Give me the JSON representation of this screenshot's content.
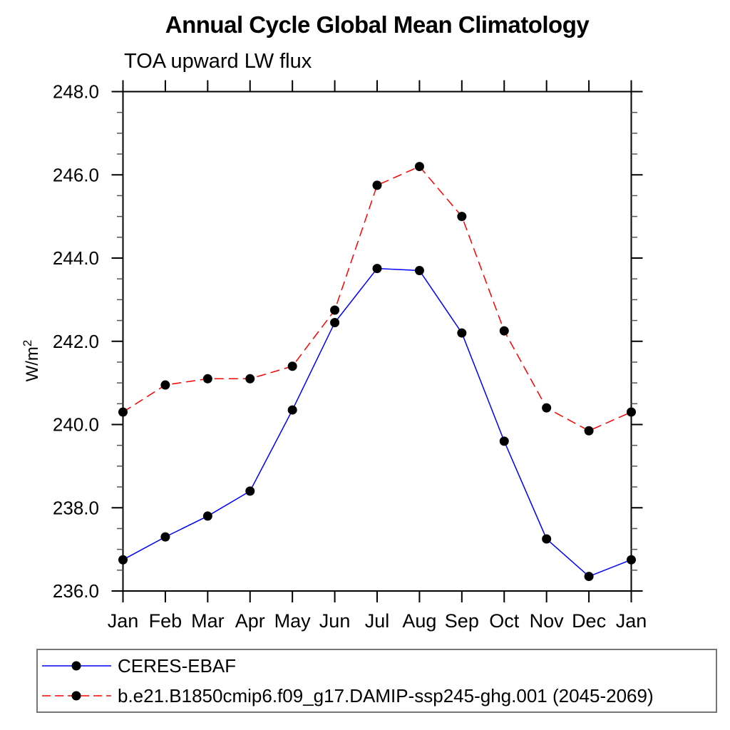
{
  "title": "Annual Cycle Global Mean Climatology",
  "subtitle": "TOA upward LW flux",
  "chart_data": {
    "type": "line",
    "title": "Annual Cycle Global Mean Climatology",
    "subtitle": "TOA upward LW flux",
    "ylabel": {
      "text": "W/m",
      "sup": "2"
    },
    "categories": [
      "Jan",
      "Feb",
      "Mar",
      "Apr",
      "May",
      "Jun",
      "Jul",
      "Aug",
      "Sep",
      "Oct",
      "Nov",
      "Dec",
      "Jan"
    ],
    "series": [
      {
        "name": "CERES-EBAF",
        "line_color": "#0000ff",
        "line_style": "solid",
        "marker": "filled-circle",
        "marker_color": "#000000",
        "values": [
          236.75,
          237.3,
          237.8,
          238.4,
          240.35,
          242.45,
          243.75,
          243.7,
          242.2,
          239.6,
          237.25,
          236.35,
          236.75
        ]
      },
      {
        "name": "b.e21.B1850cmip6.f09_g17.DAMIP-ssp245-ghg.001 (2045-2069)",
        "line_color": "#ff0000",
        "line_style": "dashed",
        "marker": "filled-circle",
        "marker_color": "#000000",
        "values": [
          240.3,
          240.95,
          241.1,
          241.1,
          241.4,
          242.75,
          245.75,
          246.2,
          245.0,
          242.25,
          240.4,
          239.85,
          240.3
        ]
      }
    ],
    "ylim": [
      236.0,
      248.0
    ],
    "y_major_tick_step": 2.0,
    "y_minor_tick_step": 0.5,
    "y_tick_labels": [
      "236.0",
      "238.0",
      "240.0",
      "242.0",
      "244.0",
      "246.0",
      "248.0"
    ],
    "grid": false,
    "legend_position": "bottom-left-box",
    "axis_color": "#000000"
  }
}
